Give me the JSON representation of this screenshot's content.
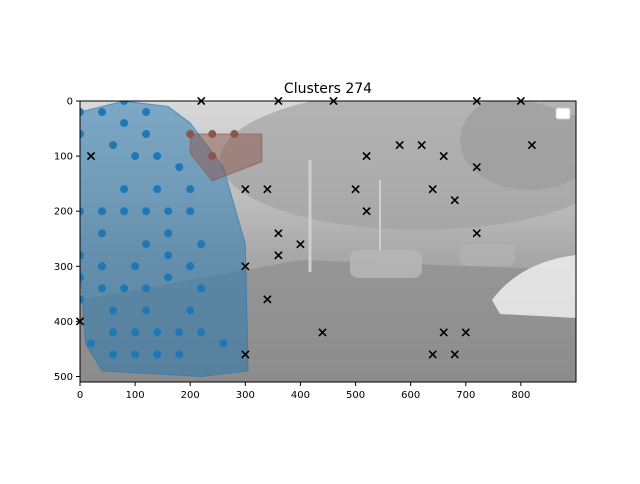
{
  "chart_data": {
    "type": "scatter",
    "title": "Clusters 274",
    "xlabel": "",
    "ylabel": "",
    "xlim": [
      0,
      900
    ],
    "ylim": [
      510,
      0
    ],
    "x_ticks": [
      0,
      100,
      200,
      300,
      400,
      500,
      600,
      700,
      800
    ],
    "y_ticks": [
      0,
      100,
      200,
      300,
      400,
      500
    ],
    "grid": false,
    "legend_location": "upper right",
    "legend_entries": [],
    "background": "grayscale street photograph with parked cars and trees, dimmed",
    "colors": {
      "cluster_blue": "#1f77b4",
      "cluster_brown": "#8c564b",
      "noise": "#000000"
    },
    "clusters": [
      {
        "color": "#1f77b4",
        "hull": [
          [
            0,
            20
          ],
          [
            80,
            0
          ],
          [
            160,
            10
          ],
          [
            200,
            40
          ],
          [
            260,
            120
          ],
          [
            300,
            260
          ],
          [
            305,
            490
          ],
          [
            220,
            500
          ],
          [
            40,
            490
          ],
          [
            10,
            440
          ],
          [
            0,
            300
          ]
        ],
        "points": [
          [
            80,
            0
          ],
          [
            0,
            20
          ],
          [
            40,
            20
          ],
          [
            120,
            20
          ],
          [
            0,
            60
          ],
          [
            80,
            40
          ],
          [
            120,
            60
          ],
          [
            60,
            80
          ],
          [
            100,
            100
          ],
          [
            140,
            100
          ],
          [
            180,
            120
          ],
          [
            80,
            160
          ],
          [
            140,
            160
          ],
          [
            200,
            160
          ],
          [
            0,
            200
          ],
          [
            40,
            200
          ],
          [
            80,
            200
          ],
          [
            120,
            200
          ],
          [
            160,
            200
          ],
          [
            200,
            200
          ],
          [
            40,
            240
          ],
          [
            160,
            240
          ],
          [
            120,
            260
          ],
          [
            220,
            260
          ],
          [
            0,
            280
          ],
          [
            160,
            280
          ],
          [
            40,
            300
          ],
          [
            100,
            300
          ],
          [
            200,
            300
          ],
          [
            0,
            320
          ],
          [
            160,
            320
          ],
          [
            40,
            340
          ],
          [
            80,
            340
          ],
          [
            120,
            340
          ],
          [
            220,
            340
          ],
          [
            0,
            360
          ],
          [
            60,
            380
          ],
          [
            120,
            380
          ],
          [
            200,
            380
          ],
          [
            60,
            420
          ],
          [
            100,
            420
          ],
          [
            140,
            420
          ],
          [
            180,
            420
          ],
          [
            220,
            420
          ],
          [
            20,
            440
          ],
          [
            260,
            440
          ],
          [
            60,
            460
          ],
          [
            100,
            460
          ],
          [
            140,
            460
          ],
          [
            180,
            460
          ]
        ]
      },
      {
        "color": "#8c564b",
        "hull": [
          [
            200,
            60
          ],
          [
            330,
            60
          ],
          [
            330,
            110
          ],
          [
            240,
            145
          ],
          [
            200,
            95
          ]
        ],
        "points": [
          [
            200,
            60
          ],
          [
            240,
            60
          ],
          [
            280,
            60
          ],
          [
            240,
            100
          ]
        ]
      }
    ],
    "noise_points": [
      [
        220,
        0
      ],
      [
        360,
        0
      ],
      [
        460,
        0
      ],
      [
        720,
        0
      ],
      [
        800,
        0
      ],
      [
        20,
        100
      ],
      [
        520,
        100
      ],
      [
        580,
        80
      ],
      [
        620,
        80
      ],
      [
        660,
        100
      ],
      [
        720,
        120
      ],
      [
        820,
        80
      ],
      [
        300,
        160
      ],
      [
        340,
        160
      ],
      [
        500,
        160
      ],
      [
        640,
        160
      ],
      [
        680,
        180
      ],
      [
        520,
        200
      ],
      [
        360,
        240
      ],
      [
        720,
        240
      ],
      [
        400,
        260
      ],
      [
        360,
        280
      ],
      [
        300,
        300
      ],
      [
        340,
        360
      ],
      [
        0,
        400
      ],
      [
        440,
        420
      ],
      [
        660,
        420
      ],
      [
        700,
        420
      ],
      [
        300,
        460
      ],
      [
        640,
        460
      ],
      [
        680,
        460
      ]
    ]
  }
}
